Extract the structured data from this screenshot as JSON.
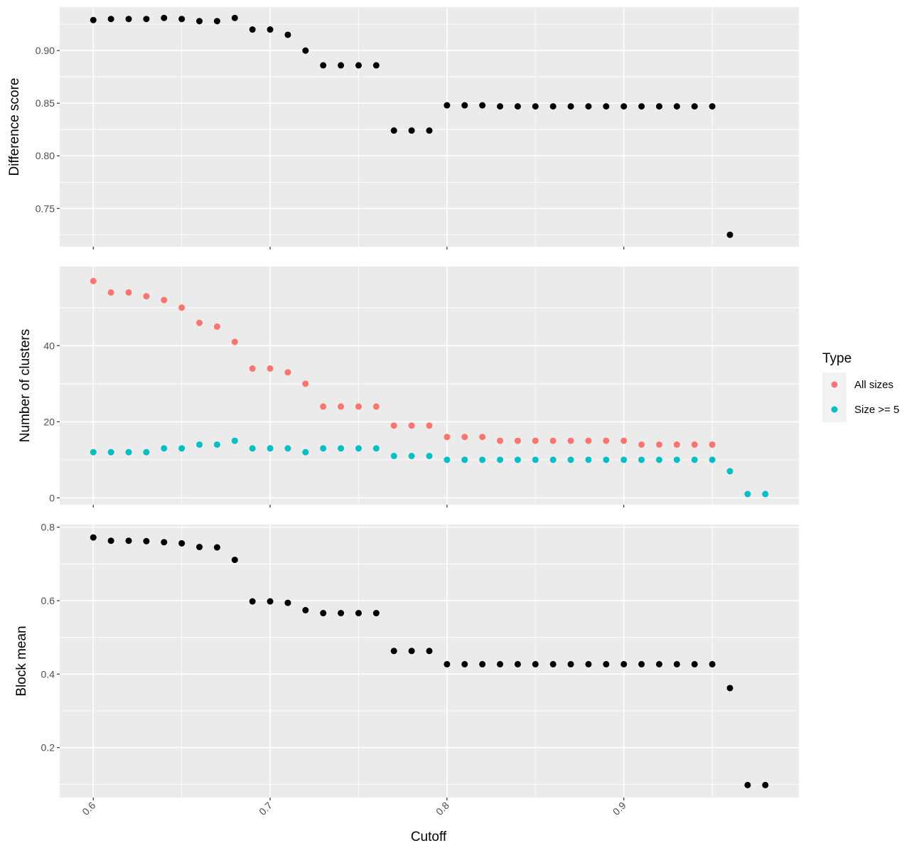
{
  "chart_data": {
    "type": "scatter",
    "xlabel": "Cutoff",
    "xlim": [
      0.581,
      0.999
    ],
    "x_ticks": [
      0.6,
      0.7,
      0.8,
      0.9
    ],
    "x_tick_labels": [
      "0.6",
      "0.7",
      "0.8",
      "0.9"
    ],
    "grid": true,
    "legend": {
      "position": "right",
      "title": "Type",
      "entries": [
        {
          "label": "All sizes",
          "color": "#F8766D"
        },
        {
          "label": "Size >= 5",
          "color": "#00BFC4"
        }
      ]
    },
    "panels": [
      {
        "ylabel": "Difference score",
        "ylim": [
          0.7137,
          0.9413
        ],
        "y_ticks": [
          0.75,
          0.8,
          0.85,
          0.9
        ],
        "y_tick_labels": [
          "0.75",
          "0.80",
          "0.85",
          "0.90"
        ],
        "series": [
          {
            "color": "#000000",
            "points": [
              [
                0.6,
                0.929
              ],
              [
                0.61,
                0.93
              ],
              [
                0.62,
                0.93
              ],
              [
                0.63,
                0.93
              ],
              [
                0.64,
                0.931
              ],
              [
                0.65,
                0.93
              ],
              [
                0.66,
                0.928
              ],
              [
                0.67,
                0.928
              ],
              [
                0.68,
                0.931
              ],
              [
                0.69,
                0.92
              ],
              [
                0.7,
                0.92
              ],
              [
                0.71,
                0.915
              ],
              [
                0.72,
                0.9
              ],
              [
                0.73,
                0.886
              ],
              [
                0.74,
                0.886
              ],
              [
                0.75,
                0.886
              ],
              [
                0.76,
                0.886
              ],
              [
                0.77,
                0.824
              ],
              [
                0.78,
                0.824
              ],
              [
                0.79,
                0.824
              ],
              [
                0.8,
                0.848
              ],
              [
                0.81,
                0.848
              ],
              [
                0.82,
                0.848
              ],
              [
                0.83,
                0.847
              ],
              [
                0.84,
                0.847
              ],
              [
                0.85,
                0.847
              ],
              [
                0.86,
                0.847
              ],
              [
                0.87,
                0.847
              ],
              [
                0.88,
                0.847
              ],
              [
                0.89,
                0.847
              ],
              [
                0.9,
                0.847
              ],
              [
                0.91,
                0.847
              ],
              [
                0.92,
                0.847
              ],
              [
                0.93,
                0.847
              ],
              [
                0.94,
                0.847
              ],
              [
                0.95,
                0.847
              ],
              [
                0.96,
                0.725
              ]
            ]
          }
        ]
      },
      {
        "ylabel": "Number of clusters",
        "ylim": [
          -1.8,
          60.8
        ],
        "y_ticks": [
          0,
          20,
          40
        ],
        "y_tick_labels": [
          "0",
          "20",
          "40"
        ],
        "series": [
          {
            "name": "All sizes",
            "color": "#F8766D",
            "points": [
              [
                0.6,
                57
              ],
              [
                0.61,
                54
              ],
              [
                0.62,
                54
              ],
              [
                0.63,
                53
              ],
              [
                0.64,
                52
              ],
              [
                0.65,
                50
              ],
              [
                0.66,
                46
              ],
              [
                0.67,
                45
              ],
              [
                0.68,
                41
              ],
              [
                0.69,
                34
              ],
              [
                0.7,
                34
              ],
              [
                0.71,
                33
              ],
              [
                0.72,
                30
              ],
              [
                0.73,
                24
              ],
              [
                0.74,
                24
              ],
              [
                0.75,
                24
              ],
              [
                0.76,
                24
              ],
              [
                0.77,
                19
              ],
              [
                0.78,
                19
              ],
              [
                0.79,
                19
              ],
              [
                0.8,
                16
              ],
              [
                0.81,
                16
              ],
              [
                0.82,
                16
              ],
              [
                0.83,
                15
              ],
              [
                0.84,
                15
              ],
              [
                0.85,
                15
              ],
              [
                0.86,
                15
              ],
              [
                0.87,
                15
              ],
              [
                0.88,
                15
              ],
              [
                0.89,
                15
              ],
              [
                0.9,
                15
              ],
              [
                0.91,
                14
              ],
              [
                0.92,
                14
              ],
              [
                0.93,
                14
              ],
              [
                0.94,
                14
              ],
              [
                0.95,
                14
              ]
            ]
          },
          {
            "name": "Size >= 5",
            "color": "#00BFC4",
            "points": [
              [
                0.6,
                12
              ],
              [
                0.61,
                12
              ],
              [
                0.62,
                12
              ],
              [
                0.63,
                12
              ],
              [
                0.64,
                13
              ],
              [
                0.65,
                13
              ],
              [
                0.66,
                14
              ],
              [
                0.67,
                14
              ],
              [
                0.68,
                15
              ],
              [
                0.69,
                13
              ],
              [
                0.7,
                13
              ],
              [
                0.71,
                13
              ],
              [
                0.72,
                12
              ],
              [
                0.73,
                13
              ],
              [
                0.74,
                13
              ],
              [
                0.75,
                13
              ],
              [
                0.76,
                13
              ],
              [
                0.77,
                11
              ],
              [
                0.78,
                11
              ],
              [
                0.79,
                11
              ],
              [
                0.8,
                10
              ],
              [
                0.81,
                10
              ],
              [
                0.82,
                10
              ],
              [
                0.83,
                10
              ],
              [
                0.84,
                10
              ],
              [
                0.85,
                10
              ],
              [
                0.86,
                10
              ],
              [
                0.87,
                10
              ],
              [
                0.88,
                10
              ],
              [
                0.89,
                10
              ],
              [
                0.9,
                10
              ],
              [
                0.91,
                10
              ],
              [
                0.92,
                10
              ],
              [
                0.93,
                10
              ],
              [
                0.94,
                10
              ],
              [
                0.95,
                10
              ],
              [
                0.96,
                7
              ],
              [
                0.97,
                1
              ],
              [
                0.98,
                1
              ]
            ]
          }
        ]
      },
      {
        "ylabel": "Block mean",
        "ylim": [
          0.064,
          0.807
        ],
        "y_ticks": [
          0.2,
          0.4,
          0.6,
          0.8
        ],
        "y_tick_labels": [
          "0.2",
          "0.4",
          "0.6",
          "0.8"
        ],
        "series": [
          {
            "color": "#000000",
            "points": [
              [
                0.6,
                0.772
              ],
              [
                0.61,
                0.763
              ],
              [
                0.62,
                0.763
              ],
              [
                0.63,
                0.762
              ],
              [
                0.64,
                0.759
              ],
              [
                0.65,
                0.756
              ],
              [
                0.66,
                0.746
              ],
              [
                0.67,
                0.745
              ],
              [
                0.68,
                0.711
              ],
              [
                0.69,
                0.598
              ],
              [
                0.7,
                0.598
              ],
              [
                0.71,
                0.594
              ],
              [
                0.72,
                0.574
              ],
              [
                0.73,
                0.566
              ],
              [
                0.74,
                0.566
              ],
              [
                0.75,
                0.566
              ],
              [
                0.76,
                0.566
              ],
              [
                0.77,
                0.463
              ],
              [
                0.78,
                0.463
              ],
              [
                0.79,
                0.463
              ],
              [
                0.8,
                0.427
              ],
              [
                0.81,
                0.427
              ],
              [
                0.82,
                0.427
              ],
              [
                0.83,
                0.427
              ],
              [
                0.84,
                0.427
              ],
              [
                0.85,
                0.427
              ],
              [
                0.86,
                0.427
              ],
              [
                0.87,
                0.427
              ],
              [
                0.88,
                0.427
              ],
              [
                0.89,
                0.427
              ],
              [
                0.9,
                0.427
              ],
              [
                0.91,
                0.427
              ],
              [
                0.92,
                0.427
              ],
              [
                0.93,
                0.427
              ],
              [
                0.94,
                0.427
              ],
              [
                0.95,
                0.427
              ],
              [
                0.96,
                0.362
              ],
              [
                0.97,
                0.098
              ],
              [
                0.98,
                0.098
              ]
            ]
          }
        ]
      }
    ]
  }
}
